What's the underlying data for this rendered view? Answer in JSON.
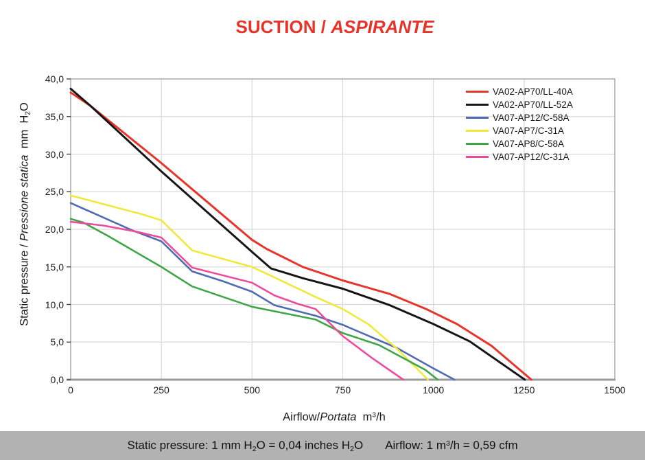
{
  "title": {
    "part1": "SUCTION",
    "separator": " / ",
    "part2": "ASPIRANTE",
    "color": "#E8332A"
  },
  "footer": {
    "left": "Static pressure: 1 mm H~2~O = 0,04 inches H~2~O",
    "right": "Airflow: 1 m^3^/h = 0,59 cfm",
    "background": "#B2B2B2"
  },
  "chart_data": {
    "type": "line",
    "title": "SUCTION / ASPIRANTE",
    "xlabel": {
      "regular": "Airflow/",
      "italic": "Portata",
      "suffix": "  m^3^/h"
    },
    "ylabel": {
      "regular": "Static pressure / ",
      "italic": "Pressione statica",
      "suffix": "  mm  H~2~O"
    },
    "xlim": [
      0,
      1500
    ],
    "ylim": [
      0,
      40
    ],
    "x_tick_values": [
      0,
      250,
      500,
      750,
      1000,
      1250,
      1500
    ],
    "x_tick_labels": [
      "0",
      "250",
      "500",
      "750",
      "1000",
      "1250",
      "1500"
    ],
    "y_tick_values": [
      0,
      5,
      10,
      15,
      20,
      25,
      30,
      35,
      40
    ],
    "y_tick_labels": [
      "0,0",
      "5,0",
      "10,0",
      "15,0",
      "20,0",
      "25,0",
      "30,0",
      "35,0",
      "40,0"
    ],
    "grid": true,
    "grid_color": "#D9D9D9",
    "border_color": "#A8A8A8",
    "axis_color": "#999999",
    "tick_color": "#444444",
    "legend_position": "top-right",
    "series": [
      {
        "name": "VA02-AP70/LL-40A",
        "color": "#E6352B",
        "width": 3,
        "points": [
          [
            0,
            38.2
          ],
          [
            55,
            36.4
          ],
          [
            250,
            28.8
          ],
          [
            500,
            18.6
          ],
          [
            540,
            17.4
          ],
          [
            640,
            15.0
          ],
          [
            750,
            13.2
          ],
          [
            880,
            11.4
          ],
          [
            980,
            9.4
          ],
          [
            1065,
            7.4
          ],
          [
            1160,
            4.5
          ],
          [
            1270,
            0
          ]
        ]
      },
      {
        "name": "VA02-AP70/LL-52A",
        "color": "#161616",
        "width": 3,
        "points": [
          [
            0,
            38.7
          ],
          [
            55,
            36.4
          ],
          [
            250,
            27.7
          ],
          [
            500,
            17.0
          ],
          [
            552,
            14.8
          ],
          [
            640,
            13.5
          ],
          [
            750,
            12.1
          ],
          [
            880,
            9.9
          ],
          [
            1000,
            7.4
          ],
          [
            1100,
            5.1
          ],
          [
            1252,
            0
          ]
        ]
      },
      {
        "name": "VA07-AP12/C-58A",
        "color": "#4F6BB2",
        "width": 2.6,
        "points": [
          [
            0,
            23.5
          ],
          [
            168,
            19.9
          ],
          [
            250,
            18.4
          ],
          [
            335,
            14.4
          ],
          [
            420,
            13.1
          ],
          [
            500,
            11.7
          ],
          [
            562,
            9.9
          ],
          [
            675,
            8.5
          ],
          [
            750,
            7.3
          ],
          [
            900,
            4.2
          ],
          [
            1000,
            1.5
          ],
          [
            1058,
            0
          ]
        ]
      },
      {
        "name": "VA07-AP7/C-31A",
        "color": "#EFE93C",
        "width": 2.6,
        "points": [
          [
            0,
            24.5
          ],
          [
            197,
            22.0
          ],
          [
            250,
            21.2
          ],
          [
            335,
            17.2
          ],
          [
            500,
            15.0
          ],
          [
            562,
            13.6
          ],
          [
            675,
            11.0
          ],
          [
            750,
            9.4
          ],
          [
            820,
            7.4
          ],
          [
            900,
            4.1
          ],
          [
            985,
            0
          ]
        ]
      },
      {
        "name": "VA07-AP8/C-58A",
        "color": "#3FA647",
        "width": 2.6,
        "points": [
          [
            0,
            21.4
          ],
          [
            35,
            20.9
          ],
          [
            100,
            19.2
          ],
          [
            250,
            15.0
          ],
          [
            335,
            12.4
          ],
          [
            500,
            9.7
          ],
          [
            675,
            8.0
          ],
          [
            750,
            6.2
          ],
          [
            850,
            4.6
          ],
          [
            978,
            1.3
          ],
          [
            1012,
            0
          ]
        ]
      },
      {
        "name": "VA07-AP12/C-31A",
        "color": "#EC4D9B",
        "width": 2.6,
        "points": [
          [
            0,
            21.0
          ],
          [
            90,
            20.5
          ],
          [
            180,
            19.7
          ],
          [
            250,
            18.9
          ],
          [
            335,
            14.9
          ],
          [
            500,
            12.9
          ],
          [
            562,
            11.2
          ],
          [
            625,
            10.1
          ],
          [
            675,
            9.4
          ],
          [
            750,
            5.8
          ],
          [
            830,
            2.9
          ],
          [
            917,
            0
          ]
        ]
      }
    ]
  }
}
